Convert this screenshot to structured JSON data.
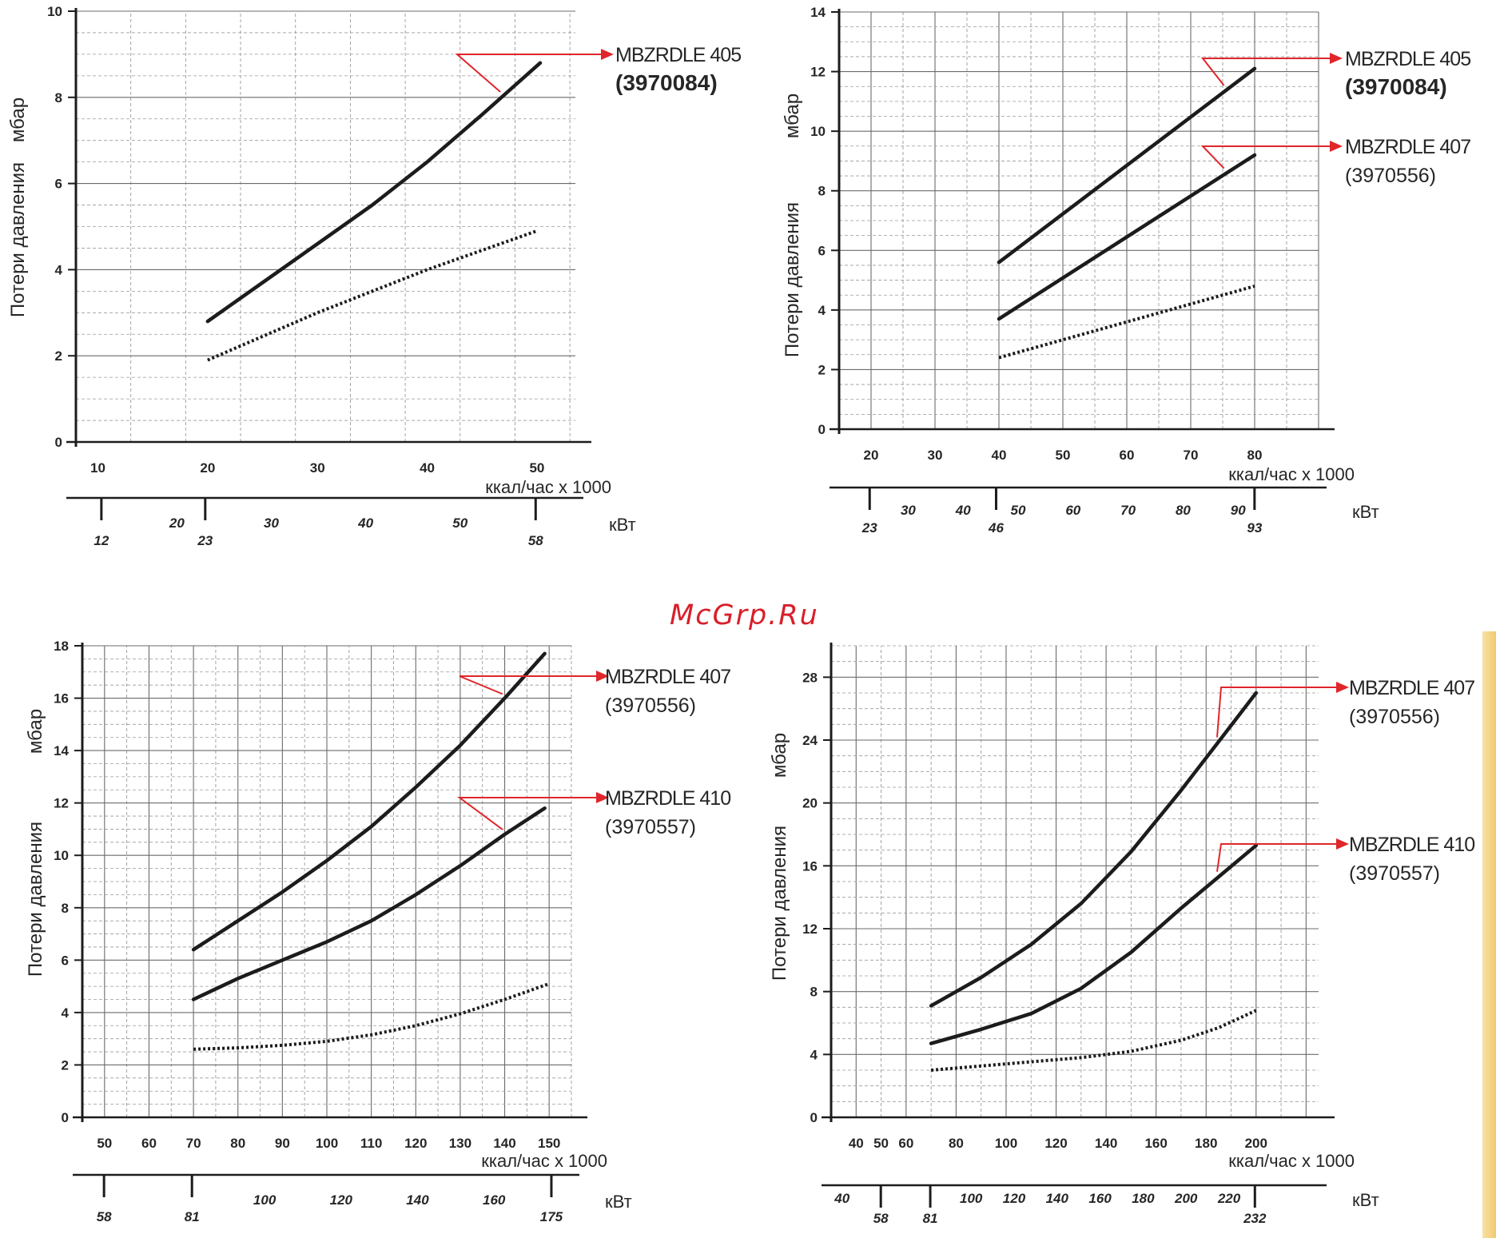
{
  "watermark": "McGrp.Ru",
  "colors": {
    "curve": "#1c1c1c",
    "grid_major": "#6b6b6b",
    "grid_minor": "#9a9a9a",
    "axis": "#1c1c1c",
    "arrow": "#e0262b",
    "text": "#262626"
  },
  "chart_data": [
    {
      "type": "line",
      "ylabel": "Потери давления",
      "ylabel_unit": "мбар",
      "ylim": [
        0,
        10
      ],
      "yticks": [
        0,
        2,
        4,
        6,
        8,
        10
      ],
      "xlim": [
        8,
        53.5
      ],
      "xticks": [
        10,
        20,
        30,
        40,
        50
      ],
      "xlabel": "ккал/час х 1000",
      "kw_axis": {
        "label": "кВт",
        "ticks": [
          20,
          30,
          40,
          50
        ],
        "bold_ticks": [
          12,
          23,
          58
        ]
      },
      "series": [
        {
          "name": "MBZRDLE 405",
          "code": "(3970084)",
          "style": "solid",
          "x": [
            20,
            25,
            30,
            35,
            40,
            45,
            50.3
          ],
          "y": [
            2.8,
            3.7,
            4.6,
            5.5,
            6.5,
            7.6,
            8.8
          ]
        },
        {
          "name": "",
          "style": "dotted",
          "x": [
            20,
            30,
            40,
            50
          ],
          "y": [
            1.9,
            3.0,
            4.0,
            4.9
          ]
        }
      ],
      "legend": [
        {
          "name": "MBZRDLE 405",
          "code": "(3970084)"
        }
      ]
    },
    {
      "type": "line",
      "ylabel": "Потери давления",
      "ylabel_unit": "мбар",
      "ylim": [
        0,
        14
      ],
      "yticks": [
        0,
        2,
        4,
        6,
        8,
        10,
        12,
        14
      ],
      "xlim": [
        15,
        90
      ],
      "xticks": [
        20,
        30,
        40,
        50,
        60,
        70,
        80
      ],
      "xlabel": "ккал/час х 1000",
      "kw_axis": {
        "label": "кВт",
        "ticks": [
          30,
          40,
          50,
          60,
          70,
          80,
          90
        ],
        "bold_ticks": [
          23,
          46,
          93
        ]
      },
      "series": [
        {
          "name": "MBZRDLE 405",
          "code": "(3970084)",
          "style": "solid",
          "x": [
            40,
            80
          ],
          "y": [
            5.6,
            12.1
          ]
        },
        {
          "name": "MBZRDLE 407",
          "code": "(3970556)",
          "style": "solid",
          "x": [
            40,
            80
          ],
          "y": [
            3.7,
            9.2
          ]
        },
        {
          "name": "",
          "style": "dotted",
          "x": [
            40,
            80
          ],
          "y": [
            2.4,
            4.8
          ]
        }
      ],
      "legend": [
        {
          "name": "MBZRDLE 405",
          "code": "(3970084)"
        },
        {
          "name": "MBZRDLE 407",
          "code": "(3970556)"
        }
      ]
    },
    {
      "type": "line",
      "ylabel": "Потери давления",
      "ylabel_unit": "мбар",
      "ylim": [
        0,
        18
      ],
      "yticks": [
        0,
        2,
        4,
        6,
        8,
        10,
        12,
        14,
        16,
        18
      ],
      "xlim": [
        45,
        155
      ],
      "xticks": [
        50,
        60,
        70,
        80,
        90,
        100,
        110,
        120,
        130,
        140,
        150
      ],
      "xlabel": "ккал/час х 1000",
      "kw_axis": {
        "label": "кВт",
        "ticks": [
          100,
          120,
          140,
          160
        ],
        "bold_ticks": [
          58,
          81,
          175
        ]
      },
      "series": [
        {
          "name": "MBZRDLE 407",
          "code": "(3970556)",
          "style": "solid",
          "x": [
            70,
            80,
            90,
            100,
            110,
            120,
            130,
            140,
            149
          ],
          "y": [
            6.4,
            7.5,
            8.6,
            9.8,
            11.1,
            12.6,
            14.2,
            16.0,
            17.7
          ]
        },
        {
          "name": "MBZRDLE 410",
          "code": "(3970557)",
          "style": "solid",
          "x": [
            70,
            80,
            90,
            100,
            110,
            120,
            130,
            140,
            149
          ],
          "y": [
            4.5,
            5.3,
            6.0,
            6.7,
            7.5,
            8.5,
            9.6,
            10.8,
            11.8
          ]
        },
        {
          "name": "",
          "style": "dotted",
          "x": [
            70,
            80,
            90,
            100,
            110,
            120,
            130,
            140,
            150
          ],
          "y": [
            2.6,
            2.65,
            2.75,
            2.9,
            3.15,
            3.5,
            3.95,
            4.5,
            5.1
          ]
        }
      ],
      "legend": [
        {
          "name": "MBZRDLE 407",
          "code": "(3970556)"
        },
        {
          "name": "MBZRDLE 410",
          "code": "(3970557)"
        }
      ]
    },
    {
      "type": "line",
      "ylabel": "Потери давления",
      "ylabel_unit": "мбар",
      "ylim": [
        0,
        30
      ],
      "yticks": [
        0,
        4,
        8,
        12,
        16,
        20,
        24,
        28
      ],
      "xlim": [
        30,
        225
      ],
      "xticks": [
        40,
        60,
        80,
        100,
        120,
        140,
        160,
        180,
        200
      ],
      "xtick_minor_labels": [
        50
      ],
      "xlabel": "ккал/час х 1000",
      "kw_axis": {
        "label": "кВт",
        "ticks": [
          40,
          100,
          120,
          140,
          160,
          180,
          200,
          220
        ],
        "bold_ticks": [
          58,
          81,
          232
        ]
      },
      "series": [
        {
          "name": "MBZRDLE 407",
          "code": "(3970556)",
          "style": "solid",
          "x": [
            70,
            90,
            110,
            130,
            150,
            170,
            185,
            200
          ],
          "y": [
            7.1,
            8.9,
            11.0,
            13.6,
            16.9,
            20.8,
            23.9,
            27.0
          ]
        },
        {
          "name": "MBZRDLE 410",
          "code": "(3970557)",
          "style": "solid",
          "x": [
            70,
            90,
            110,
            130,
            150,
            170,
            185,
            200
          ],
          "y": [
            4.7,
            5.6,
            6.6,
            8.2,
            10.5,
            13.3,
            15.3,
            17.3
          ]
        },
        {
          "name": "",
          "style": "dotted",
          "x": [
            70,
            100,
            130,
            150,
            170,
            185,
            200
          ],
          "y": [
            3.0,
            3.4,
            3.8,
            4.2,
            4.9,
            5.7,
            6.8
          ]
        }
      ],
      "legend": [
        {
          "name": "MBZRDLE 407",
          "code": "(3970556)"
        },
        {
          "name": "MBZRDLE 410",
          "code": "(3970557)"
        }
      ]
    }
  ]
}
